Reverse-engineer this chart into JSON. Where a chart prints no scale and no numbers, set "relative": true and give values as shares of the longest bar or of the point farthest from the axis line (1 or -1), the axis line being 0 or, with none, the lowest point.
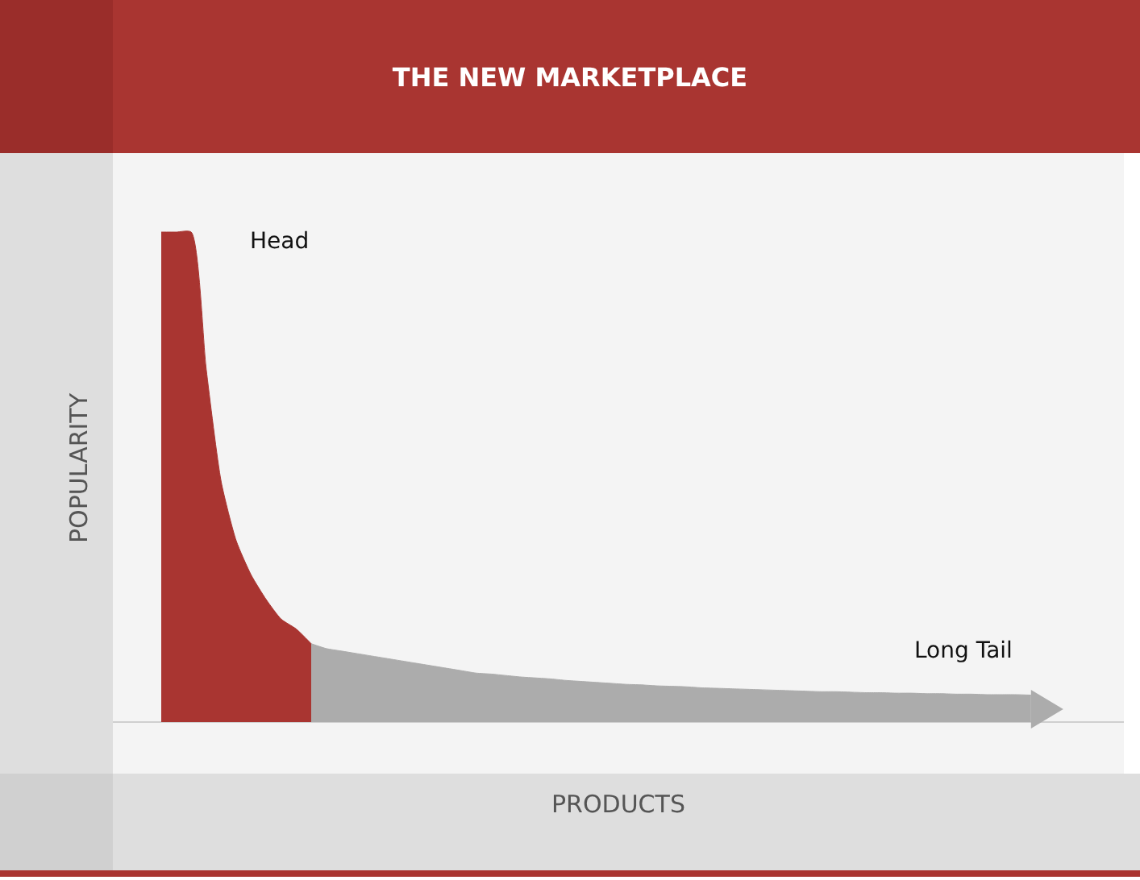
{
  "chart_data": {
    "type": "area",
    "title": "THE NEW MARKETPLACE",
    "xlabel": "PRODUCTS",
    "ylabel": "POPULARITY",
    "relative": true,
    "grid": false,
    "legend": false,
    "categories": [
      null,
      null,
      null,
      null,
      null,
      null,
      null,
      null,
      null,
      null,
      null,
      null,
      null,
      null,
      null,
      null,
      null,
      null,
      null,
      null,
      null,
      null,
      null,
      null,
      null,
      null,
      null,
      null,
      null,
      null,
      null,
      null,
      null,
      null,
      null,
      null,
      null,
      null,
      null,
      null,
      null,
      null,
      null,
      null,
      null,
      null,
      null,
      null,
      null,
      null,
      null,
      null,
      null,
      null,
      null,
      null,
      null,
      null,
      null
    ],
    "series": [
      {
        "name": "Head",
        "color": "#a93531",
        "values": [
          1.0,
          1.0,
          1.0,
          0.72,
          0.49,
          0.37,
          0.3,
          0.25,
          0.21,
          0.19,
          0.16,
          null,
          null,
          null,
          null,
          null,
          null,
          null,
          null,
          null,
          null,
          null,
          null,
          null,
          null,
          null,
          null,
          null,
          null,
          null,
          null,
          null,
          null,
          null,
          null,
          null,
          null,
          null,
          null,
          null,
          null,
          null,
          null,
          null,
          null,
          null,
          null,
          null,
          null,
          null,
          null,
          null,
          null,
          null,
          null,
          null,
          null,
          null,
          null
        ]
      },
      {
        "name": "Long Tail",
        "color": "#acacac",
        "values": [
          null,
          null,
          null,
          null,
          null,
          null,
          null,
          null,
          null,
          null,
          0.16,
          0.15,
          0.145,
          0.14,
          0.135,
          0.13,
          0.125,
          0.12,
          0.115,
          0.11,
          0.105,
          0.1,
          0.098,
          0.095,
          0.092,
          0.09,
          0.088,
          0.085,
          0.083,
          0.081,
          0.079,
          0.077,
          0.076,
          0.074,
          0.073,
          0.072,
          0.07,
          0.069,
          0.068,
          0.067,
          0.066,
          0.065,
          0.064,
          0.063,
          0.062,
          0.062,
          0.061,
          0.06,
          0.06,
          0.059,
          0.059,
          0.058,
          0.058,
          0.057,
          0.057,
          0.056,
          0.056,
          0.056,
          0.055
        ]
      }
    ]
  }
}
